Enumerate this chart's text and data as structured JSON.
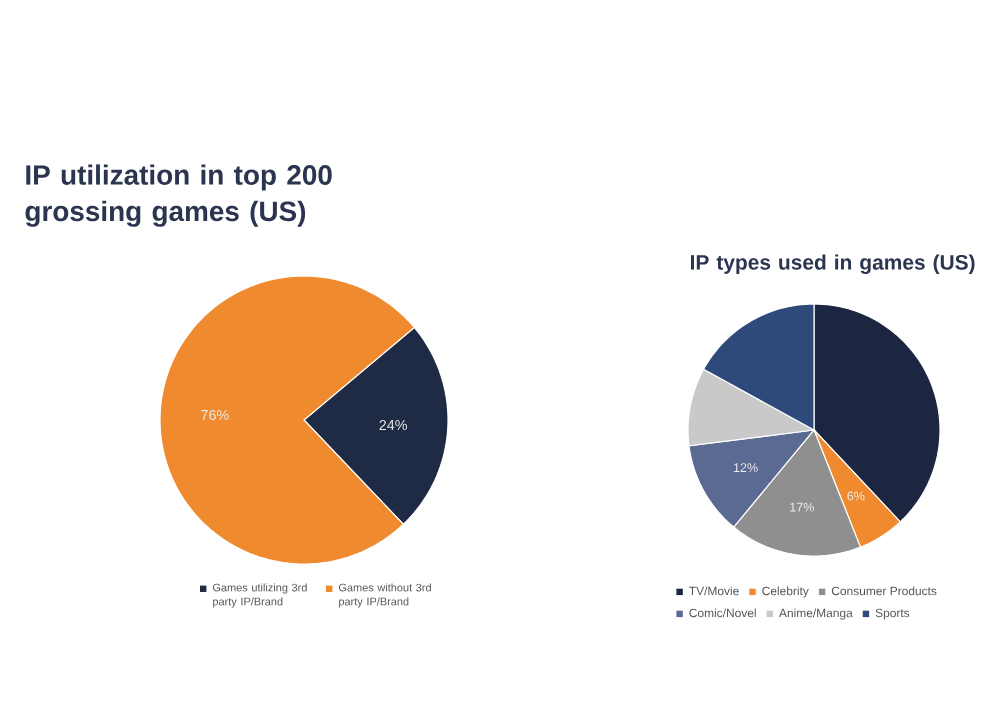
{
  "chart_data": [
    {
      "type": "pie",
      "title": "IP utilization in top 200 grossing games (US)",
      "categories": [
        "Games utilizing 3rd party IP/Brand",
        "Games without 3rd party IP/Brand"
      ],
      "values": [
        24,
        76
      ],
      "colors": [
        "#1f2a44",
        "#f08a2f"
      ],
      "value_labels": [
        "24%",
        "76%"
      ],
      "legend": "bottom"
    },
    {
      "type": "pie",
      "title": "IP types used in games (US)",
      "categories": [
        "TV/Movie",
        "Celebrity",
        "Consumer Products",
        "Comic/Novel",
        "Anime/Manga",
        "Sports"
      ],
      "values": [
        38,
        6,
        17,
        12,
        10,
        17
      ],
      "colors": [
        "#1c2640",
        "#f08a2f",
        "#8f8f8f",
        "#5b6a93",
        "#c9c9c9",
        "#2e4a7a"
      ],
      "value_labels": [
        null,
        "6%",
        "17%",
        "12%",
        null,
        null
      ],
      "legend": "bottom"
    }
  ]
}
